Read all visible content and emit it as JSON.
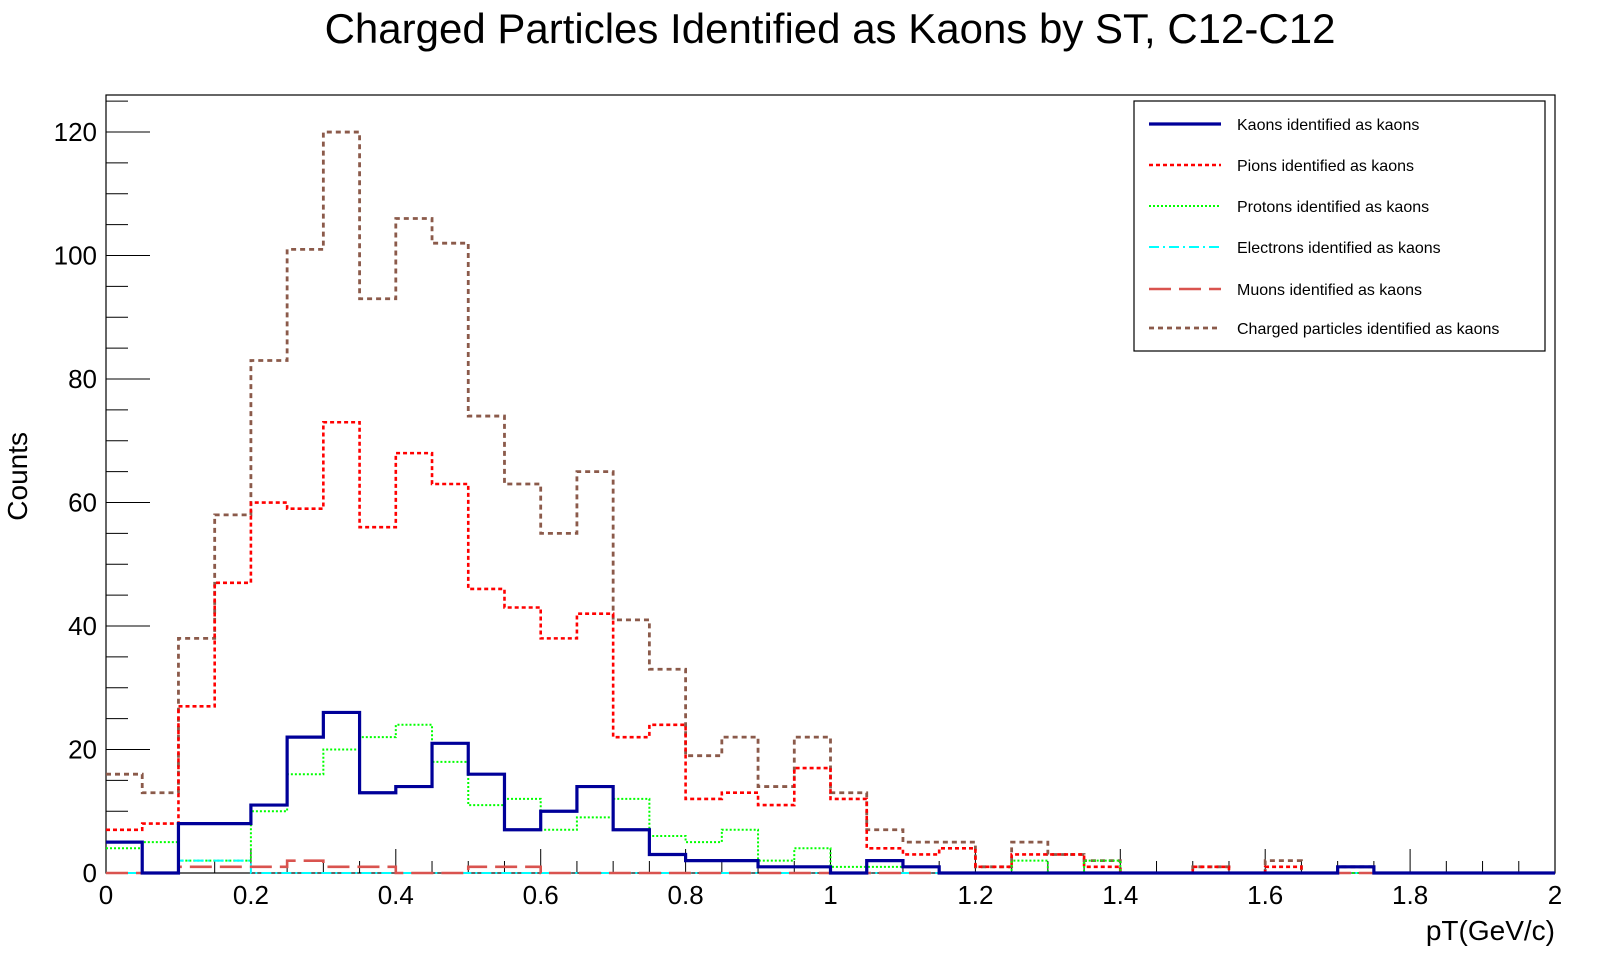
{
  "chart_data": {
    "type": "histogram",
    "title": "Charged Particles Identified as Kaons by ST, C12-C12",
    "xlabel": "pT(GeV/c)",
    "ylabel": "Counts",
    "xlim": [
      0,
      2
    ],
    "ylim": [
      0,
      126
    ],
    "x_ticks": [
      0,
      0.2,
      0.4,
      0.6,
      0.8,
      1,
      1.2,
      1.4,
      1.6,
      1.8,
      2
    ],
    "x_tick_labels": [
      "0",
      "0.2",
      "0.4",
      "0.6",
      "0.8",
      "1",
      "1.2",
      "1.4",
      "1.6",
      "1.8",
      "2"
    ],
    "y_ticks": [
      0,
      20,
      40,
      60,
      80,
      100,
      120
    ],
    "y_tick_labels": [
      "0",
      "20",
      "40",
      "60",
      "80",
      "100",
      "120"
    ],
    "bin_width": 0.05,
    "bin_edges_start": 0,
    "legend_position": "top-right",
    "grid": false,
    "series": [
      {
        "name": "Kaons identified as kaons",
        "color": "#000099",
        "style": "solid",
        "values": [
          5,
          0,
          8,
          8,
          11,
          22,
          26,
          13,
          14,
          21,
          16,
          7,
          10,
          14,
          7,
          3,
          2,
          2,
          1,
          1,
          0,
          2,
          1,
          0,
          0,
          0,
          0,
          0,
          0,
          0,
          0,
          0,
          0,
          0,
          1,
          0,
          0,
          0,
          0,
          0
        ]
      },
      {
        "name": "Pions identified as kaons",
        "color": "#ff0000",
        "style": "dotted",
        "values": [
          7,
          8,
          27,
          47,
          60,
          59,
          73,
          56,
          68,
          63,
          46,
          43,
          38,
          42,
          22,
          24,
          12,
          13,
          11,
          17,
          12,
          4,
          3,
          4,
          1,
          3,
          3,
          1,
          0,
          0,
          1,
          0,
          1,
          0,
          1,
          0,
          0,
          0,
          0,
          0
        ]
      },
      {
        "name": "Protons identified as kaons",
        "color": "#00ff00",
        "style": "dotted-fine",
        "values": [
          4,
          5,
          2,
          2,
          10,
          16,
          20,
          22,
          24,
          18,
          11,
          12,
          7,
          9,
          12,
          6,
          5,
          7,
          2,
          4,
          1,
          1,
          1,
          0,
          0,
          2,
          0,
          2,
          0,
          0,
          0,
          0,
          0,
          0,
          0,
          0,
          0,
          0,
          0,
          0
        ]
      },
      {
        "name": "Electrons identified as kaons",
        "color": "#00ffff",
        "style": "dashdot",
        "values": [
          0,
          0,
          2,
          2,
          0,
          0,
          0,
          0,
          0,
          0,
          0,
          0,
          0,
          0,
          0,
          0,
          0,
          0,
          0,
          0,
          0,
          0,
          0,
          0,
          0,
          0,
          0,
          0,
          0,
          0,
          0,
          0,
          0,
          0,
          0,
          0,
          0,
          0,
          0,
          0
        ]
      },
      {
        "name": "Muons identified as kaons",
        "color": "#d9534f",
        "style": "longdash",
        "values": [
          0,
          0,
          1,
          1,
          1,
          2,
          1,
          1,
          0,
          0,
          1,
          1,
          0,
          0,
          0,
          0,
          0,
          0,
          0,
          0,
          0,
          0,
          0,
          0,
          0,
          0,
          0,
          0,
          0,
          0,
          0,
          0,
          0,
          0,
          0,
          0,
          0,
          0,
          0,
          0
        ]
      },
      {
        "name": "Charged particles identified as kaons",
        "color": "#8b5a4a",
        "style": "dashed",
        "values": [
          16,
          13,
          38,
          58,
          83,
          101,
          120,
          93,
          106,
          102,
          74,
          63,
          55,
          65,
          41,
          33,
          19,
          22,
          14,
          22,
          13,
          7,
          5,
          5,
          1,
          5,
          3,
          2,
          0,
          0,
          1,
          0,
          2,
          0,
          1,
          0,
          0,
          0,
          0,
          0
        ]
      }
    ]
  }
}
